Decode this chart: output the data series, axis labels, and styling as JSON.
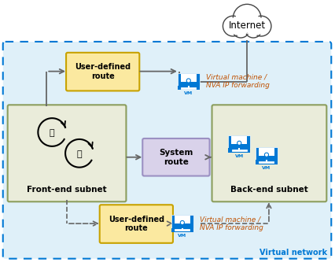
{
  "bg_color": "#ffffff",
  "vnet_label": "Virtual network",
  "vnet_bg": "#dff0f9",
  "vnet_border": "#0078d4",
  "frontend_label": "Front-end subnet",
  "frontend_bg": "#eaecda",
  "frontend_border": "#8c9e5e",
  "backend_label": "Back-end subnet",
  "backend_bg": "#eaecda",
  "backend_border": "#8c9e5e",
  "udr_label": "User-defined\nroute",
  "udr_bg": "#fbe9a0",
  "udr_border": "#c8a200",
  "system_label": "System\nroute",
  "system_bg": "#d9d2ea",
  "system_border": "#9b90c2",
  "internet_label": "Internet",
  "nva_label": "Virtual machine /\nNVA IP forwarding",
  "vm_color": "#0078d4",
  "arrow_color": "#666666",
  "text_color": "#000000",
  "orange_text": "#c05000"
}
